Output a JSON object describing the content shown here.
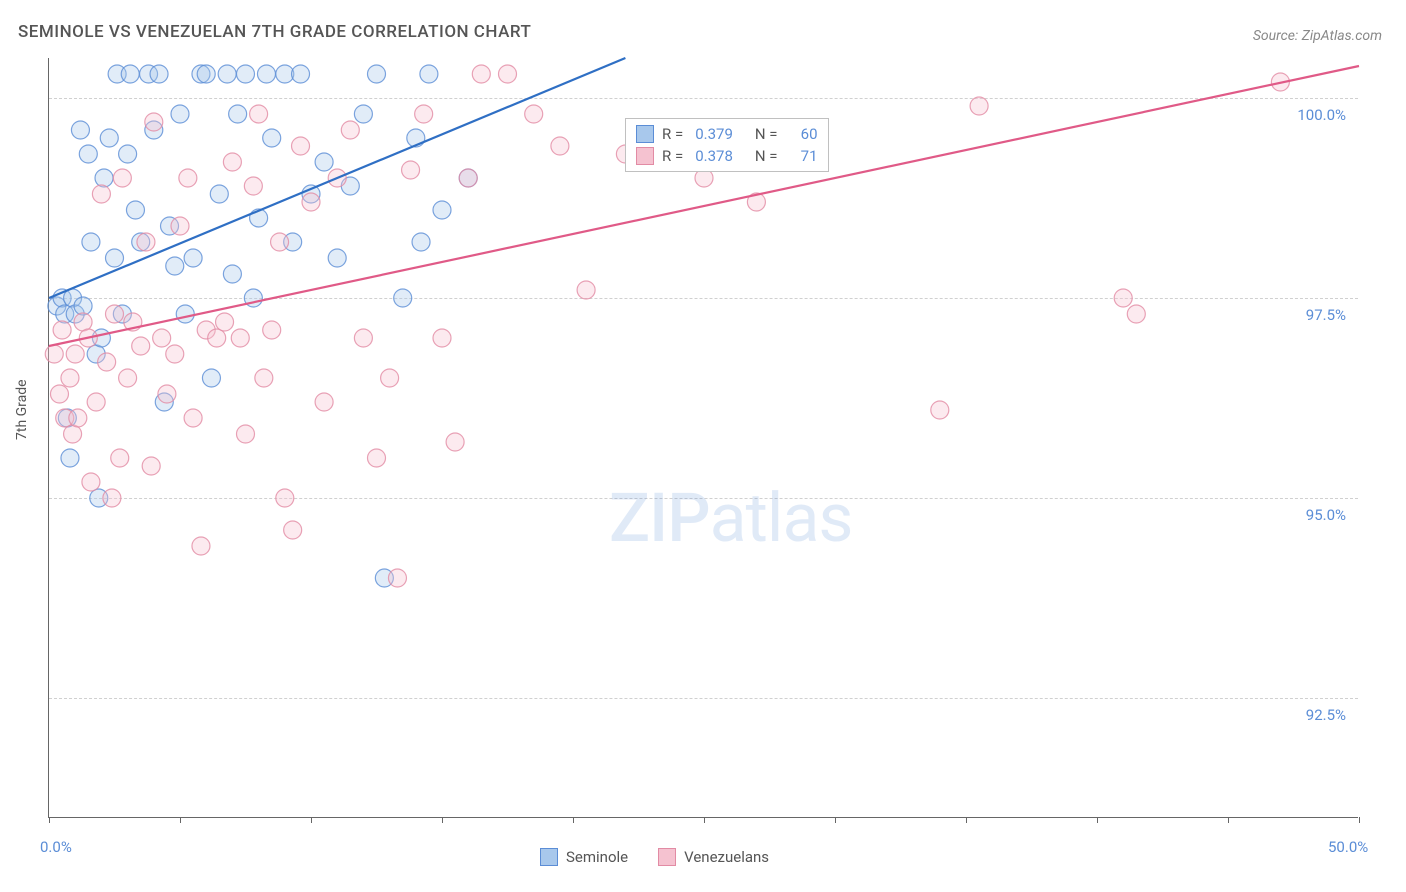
{
  "title": "SEMINOLE VS VENEZUELAN 7TH GRADE CORRELATION CHART",
  "source": "Source: ZipAtlas.com",
  "y_axis_label": "7th Grade",
  "watermark_zip": "ZIP",
  "watermark_atlas": "atlas",
  "chart": {
    "type": "scatter",
    "xlim": [
      0,
      50
    ],
    "ylim": [
      91.0,
      100.5
    ],
    "x_ticks": [
      0,
      5,
      10,
      15,
      20,
      25,
      30,
      35,
      40,
      45,
      50
    ],
    "x_tick_labels": {
      "0": "0.0%",
      "50": "50.0%"
    },
    "y_ticks": [
      92.5,
      95.0,
      97.5,
      100.0
    ],
    "y_tick_labels": [
      "92.5%",
      "95.0%",
      "97.5%",
      "100.0%"
    ],
    "background_color": "#ffffff",
    "grid_color": "#d0d0d0",
    "marker_radius": 9,
    "series": [
      {
        "name": "Seminole",
        "fill_color": "#a8c8ec",
        "stroke_color": "#5b8dd6",
        "line_color": "#2f6fc4",
        "line_width": 2.2,
        "trend": {
          "x1": 0,
          "y1": 97.5,
          "x2": 22,
          "y2": 100.5
        },
        "r": "0.379",
        "n": "60",
        "points": [
          [
            0.3,
            97.4
          ],
          [
            0.5,
            97.5
          ],
          [
            0.6,
            97.3
          ],
          [
            0.7,
            96.0
          ],
          [
            0.8,
            95.5
          ],
          [
            0.9,
            97.5
          ],
          [
            1.0,
            97.3
          ],
          [
            1.2,
            99.6
          ],
          [
            1.3,
            97.4
          ],
          [
            1.5,
            99.3
          ],
          [
            1.6,
            98.2
          ],
          [
            1.8,
            96.8
          ],
          [
            1.9,
            95.0
          ],
          [
            2.0,
            97.0
          ],
          [
            2.1,
            99.0
          ],
          [
            2.3,
            99.5
          ],
          [
            2.5,
            98.0
          ],
          [
            2.6,
            100.3
          ],
          [
            2.8,
            97.3
          ],
          [
            3.0,
            99.3
          ],
          [
            3.1,
            100.3
          ],
          [
            3.3,
            98.6
          ],
          [
            3.5,
            98.2
          ],
          [
            3.8,
            100.3
          ],
          [
            4.0,
            99.6
          ],
          [
            4.2,
            100.3
          ],
          [
            4.4,
            96.2
          ],
          [
            4.6,
            98.4
          ],
          [
            4.8,
            97.9
          ],
          [
            5.0,
            99.8
          ],
          [
            5.2,
            97.3
          ],
          [
            5.5,
            98.0
          ],
          [
            5.8,
            100.3
          ],
          [
            6.0,
            100.3
          ],
          [
            6.2,
            96.5
          ],
          [
            6.5,
            98.8
          ],
          [
            6.8,
            100.3
          ],
          [
            7.0,
            97.8
          ],
          [
            7.2,
            99.8
          ],
          [
            7.5,
            100.3
          ],
          [
            7.8,
            97.5
          ],
          [
            8.0,
            98.5
          ],
          [
            8.3,
            100.3
          ],
          [
            8.5,
            99.5
          ],
          [
            9.0,
            100.3
          ],
          [
            9.3,
            98.2
          ],
          [
            9.6,
            100.3
          ],
          [
            10.0,
            98.8
          ],
          [
            10.5,
            99.2
          ],
          [
            11.0,
            98.0
          ],
          [
            11.5,
            98.9
          ],
          [
            12.0,
            99.8
          ],
          [
            12.5,
            100.3
          ],
          [
            13.5,
            97.5
          ],
          [
            14.0,
            99.5
          ],
          [
            14.5,
            100.3
          ],
          [
            15.0,
            98.6
          ],
          [
            12.8,
            94.0
          ],
          [
            14.2,
            98.2
          ],
          [
            16.0,
            99.0
          ]
        ]
      },
      {
        "name": "Venezuelans",
        "fill_color": "#f5c2d0",
        "stroke_color": "#e28ba4",
        "line_color": "#e05a87",
        "line_width": 2.2,
        "trend": {
          "x1": 0,
          "y1": 96.9,
          "x2": 50,
          "y2": 100.4
        },
        "r": "0.378",
        "n": "71",
        "points": [
          [
            0.2,
            96.8
          ],
          [
            0.4,
            96.3
          ],
          [
            0.5,
            97.1
          ],
          [
            0.6,
            96.0
          ],
          [
            0.8,
            96.5
          ],
          [
            0.9,
            95.8
          ],
          [
            1.0,
            96.8
          ],
          [
            1.1,
            96.0
          ],
          [
            1.3,
            97.2
          ],
          [
            1.5,
            97.0
          ],
          [
            1.6,
            95.2
          ],
          [
            1.8,
            96.2
          ],
          [
            2.0,
            98.8
          ],
          [
            2.2,
            96.7
          ],
          [
            2.4,
            95.0
          ],
          [
            2.5,
            97.3
          ],
          [
            2.7,
            95.5
          ],
          [
            2.8,
            99.0
          ],
          [
            3.0,
            96.5
          ],
          [
            3.2,
            97.2
          ],
          [
            3.5,
            96.9
          ],
          [
            3.7,
            98.2
          ],
          [
            3.9,
            95.4
          ],
          [
            4.0,
            99.7
          ],
          [
            4.3,
            97.0
          ],
          [
            4.5,
            96.3
          ],
          [
            4.8,
            96.8
          ],
          [
            5.0,
            98.4
          ],
          [
            5.3,
            99.0
          ],
          [
            5.5,
            96.0
          ],
          [
            5.8,
            94.4
          ],
          [
            6.0,
            97.1
          ],
          [
            6.4,
            97.0
          ],
          [
            6.7,
            97.2
          ],
          [
            7.0,
            99.2
          ],
          [
            7.3,
            97.0
          ],
          [
            7.5,
            95.8
          ],
          [
            7.8,
            98.9
          ],
          [
            8.0,
            99.8
          ],
          [
            8.2,
            96.5
          ],
          [
            8.5,
            97.1
          ],
          [
            8.8,
            98.2
          ],
          [
            9.0,
            95.0
          ],
          [
            9.3,
            94.6
          ],
          [
            9.6,
            99.4
          ],
          [
            10.0,
            98.7
          ],
          [
            10.5,
            96.2
          ],
          [
            11.0,
            99.0
          ],
          [
            11.5,
            99.6
          ],
          [
            12.0,
            97.0
          ],
          [
            12.5,
            95.5
          ],
          [
            13.0,
            96.5
          ],
          [
            13.3,
            94.0
          ],
          [
            13.8,
            99.1
          ],
          [
            14.3,
            99.8
          ],
          [
            15.0,
            97.0
          ],
          [
            15.5,
            95.7
          ],
          [
            16.0,
            99.0
          ],
          [
            16.5,
            100.3
          ],
          [
            17.5,
            100.3
          ],
          [
            18.5,
            99.8
          ],
          [
            19.5,
            99.4
          ],
          [
            20.5,
            97.6
          ],
          [
            22.0,
            99.3
          ],
          [
            25.0,
            99.0
          ],
          [
            27.0,
            98.7
          ],
          [
            34.0,
            96.1
          ],
          [
            35.5,
            99.9
          ],
          [
            41.0,
            97.5
          ],
          [
            41.5,
            97.3
          ],
          [
            47.0,
            100.2
          ]
        ]
      }
    ]
  },
  "legend_top": {
    "r_label": "R =",
    "n_label": "N ="
  },
  "legend_bottom": [
    {
      "label": "Seminole",
      "fill": "#a8c8ec",
      "stroke": "#5b8dd6"
    },
    {
      "label": "Venezuelans",
      "fill": "#f5c2d0",
      "stroke": "#e28ba4"
    }
  ]
}
